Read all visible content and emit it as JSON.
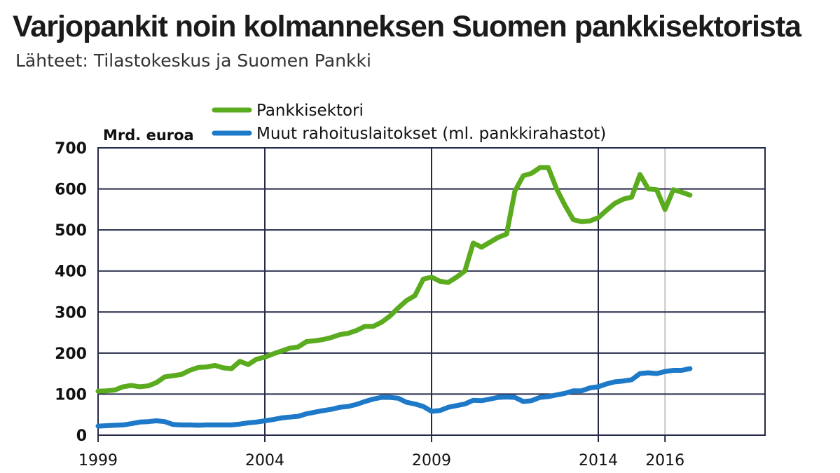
{
  "chart_data": {
    "type": "line",
    "title": "Varjopankit noin kolmanneksen Suomen pankkisektorista",
    "subtitle": "Lähteet: Tilastokeskus ja Suomen Pankki",
    "ylabel": "Mrd. euroa",
    "ylim": [
      0,
      700
    ],
    "yticks": [
      0,
      100,
      200,
      300,
      400,
      500,
      600,
      700
    ],
    "xlim": [
      1999,
      2019
    ],
    "xtick_labels": [
      {
        "x": 1999,
        "label": "1999"
      },
      {
        "x": 2004,
        "label": "2004"
      },
      {
        "x": 2009,
        "label": "2009"
      },
      {
        "x": 2014,
        "label": "2014"
      },
      {
        "x": 2016,
        "label": "2016"
      }
    ],
    "xgrid": [
      2004,
      2009,
      2014
    ],
    "xgrid_light": [
      2016
    ],
    "grid": true,
    "legend_position": "top",
    "series": [
      {
        "name": "Pankkisektori",
        "color": "#5bab1f",
        "x": [
          1999,
          1999.25,
          1999.5,
          1999.75,
          2000,
          2000.25,
          2000.5,
          2000.75,
          2001,
          2001.25,
          2001.5,
          2001.75,
          2002,
          2002.25,
          2002.5,
          2002.75,
          2003,
          2003.25,
          2003.5,
          2003.75,
          2004,
          2004.25,
          2004.5,
          2004.75,
          2005,
          2005.25,
          2005.5,
          2005.75,
          2006,
          2006.25,
          2006.5,
          2006.75,
          2007,
          2007.25,
          2007.5,
          2007.75,
          2008,
          2008.25,
          2008.5,
          2008.75,
          2009,
          2009.25,
          2009.5,
          2009.75,
          2010,
          2010.25,
          2010.5,
          2010.75,
          2011,
          2011.25,
          2011.5,
          2011.75,
          2012,
          2012.25,
          2012.5,
          2012.75,
          2013,
          2013.25,
          2013.5,
          2013.75,
          2014,
          2014.25,
          2014.5,
          2014.75,
          2015,
          2015.25,
          2015.5,
          2015.75,
          2016,
          2016.25,
          2016.5,
          2016.75
        ],
        "values": [
          107,
          108,
          110,
          118,
          121,
          118,
          120,
          128,
          142,
          145,
          148,
          158,
          165,
          166,
          170,
          164,
          162,
          180,
          172,
          185,
          190,
          198,
          205,
          212,
          215,
          228,
          230,
          233,
          238,
          245,
          248,
          255,
          265,
          265,
          275,
          290,
          310,
          328,
          340,
          380,
          385,
          375,
          372,
          385,
          400,
          468,
          458,
          470,
          482,
          490,
          595,
          632,
          638,
          652,
          652,
          600,
          560,
          525,
          520,
          522,
          530,
          548,
          565,
          575,
          580,
          635,
          600,
          598,
          550,
          598,
          592,
          585
        ]
      },
      {
        "name": "Muut rahoituslaitokset (ml. pankkirahastot)",
        "color": "#1e7ac8",
        "x": [
          1999,
          1999.25,
          1999.5,
          1999.75,
          2000,
          2000.25,
          2000.5,
          2000.75,
          2001,
          2001.25,
          2001.5,
          2001.75,
          2002,
          2002.25,
          2002.5,
          2002.75,
          2003,
          2003.25,
          2003.5,
          2003.75,
          2004,
          2004.25,
          2004.5,
          2004.75,
          2005,
          2005.25,
          2005.5,
          2005.75,
          2006,
          2006.25,
          2006.5,
          2006.75,
          2007,
          2007.25,
          2007.5,
          2007.75,
          2008,
          2008.25,
          2008.5,
          2008.75,
          2009,
          2009.25,
          2009.5,
          2009.75,
          2010,
          2010.25,
          2010.5,
          2010.75,
          2011,
          2011.25,
          2011.5,
          2011.75,
          2012,
          2012.25,
          2012.5,
          2012.75,
          2013,
          2013.25,
          2013.5,
          2013.75,
          2014,
          2014.25,
          2014.5,
          2014.75,
          2015,
          2015.25,
          2015.5,
          2015.75,
          2016,
          2016.25,
          2016.5,
          2016.75
        ],
        "values": [
          22,
          23,
          24,
          25,
          28,
          32,
          33,
          35,
          33,
          26,
          25,
          25,
          24,
          25,
          25,
          25,
          25,
          27,
          30,
          32,
          35,
          38,
          42,
          44,
          46,
          52,
          56,
          60,
          63,
          68,
          70,
          75,
          82,
          88,
          92,
          92,
          90,
          80,
          76,
          70,
          58,
          60,
          68,
          72,
          76,
          85,
          84,
          88,
          92,
          93,
          92,
          82,
          84,
          92,
          94,
          98,
          102,
          108,
          108,
          115,
          118,
          125,
          130,
          132,
          135,
          150,
          152,
          150,
          155,
          158,
          158,
          162
        ]
      }
    ]
  }
}
